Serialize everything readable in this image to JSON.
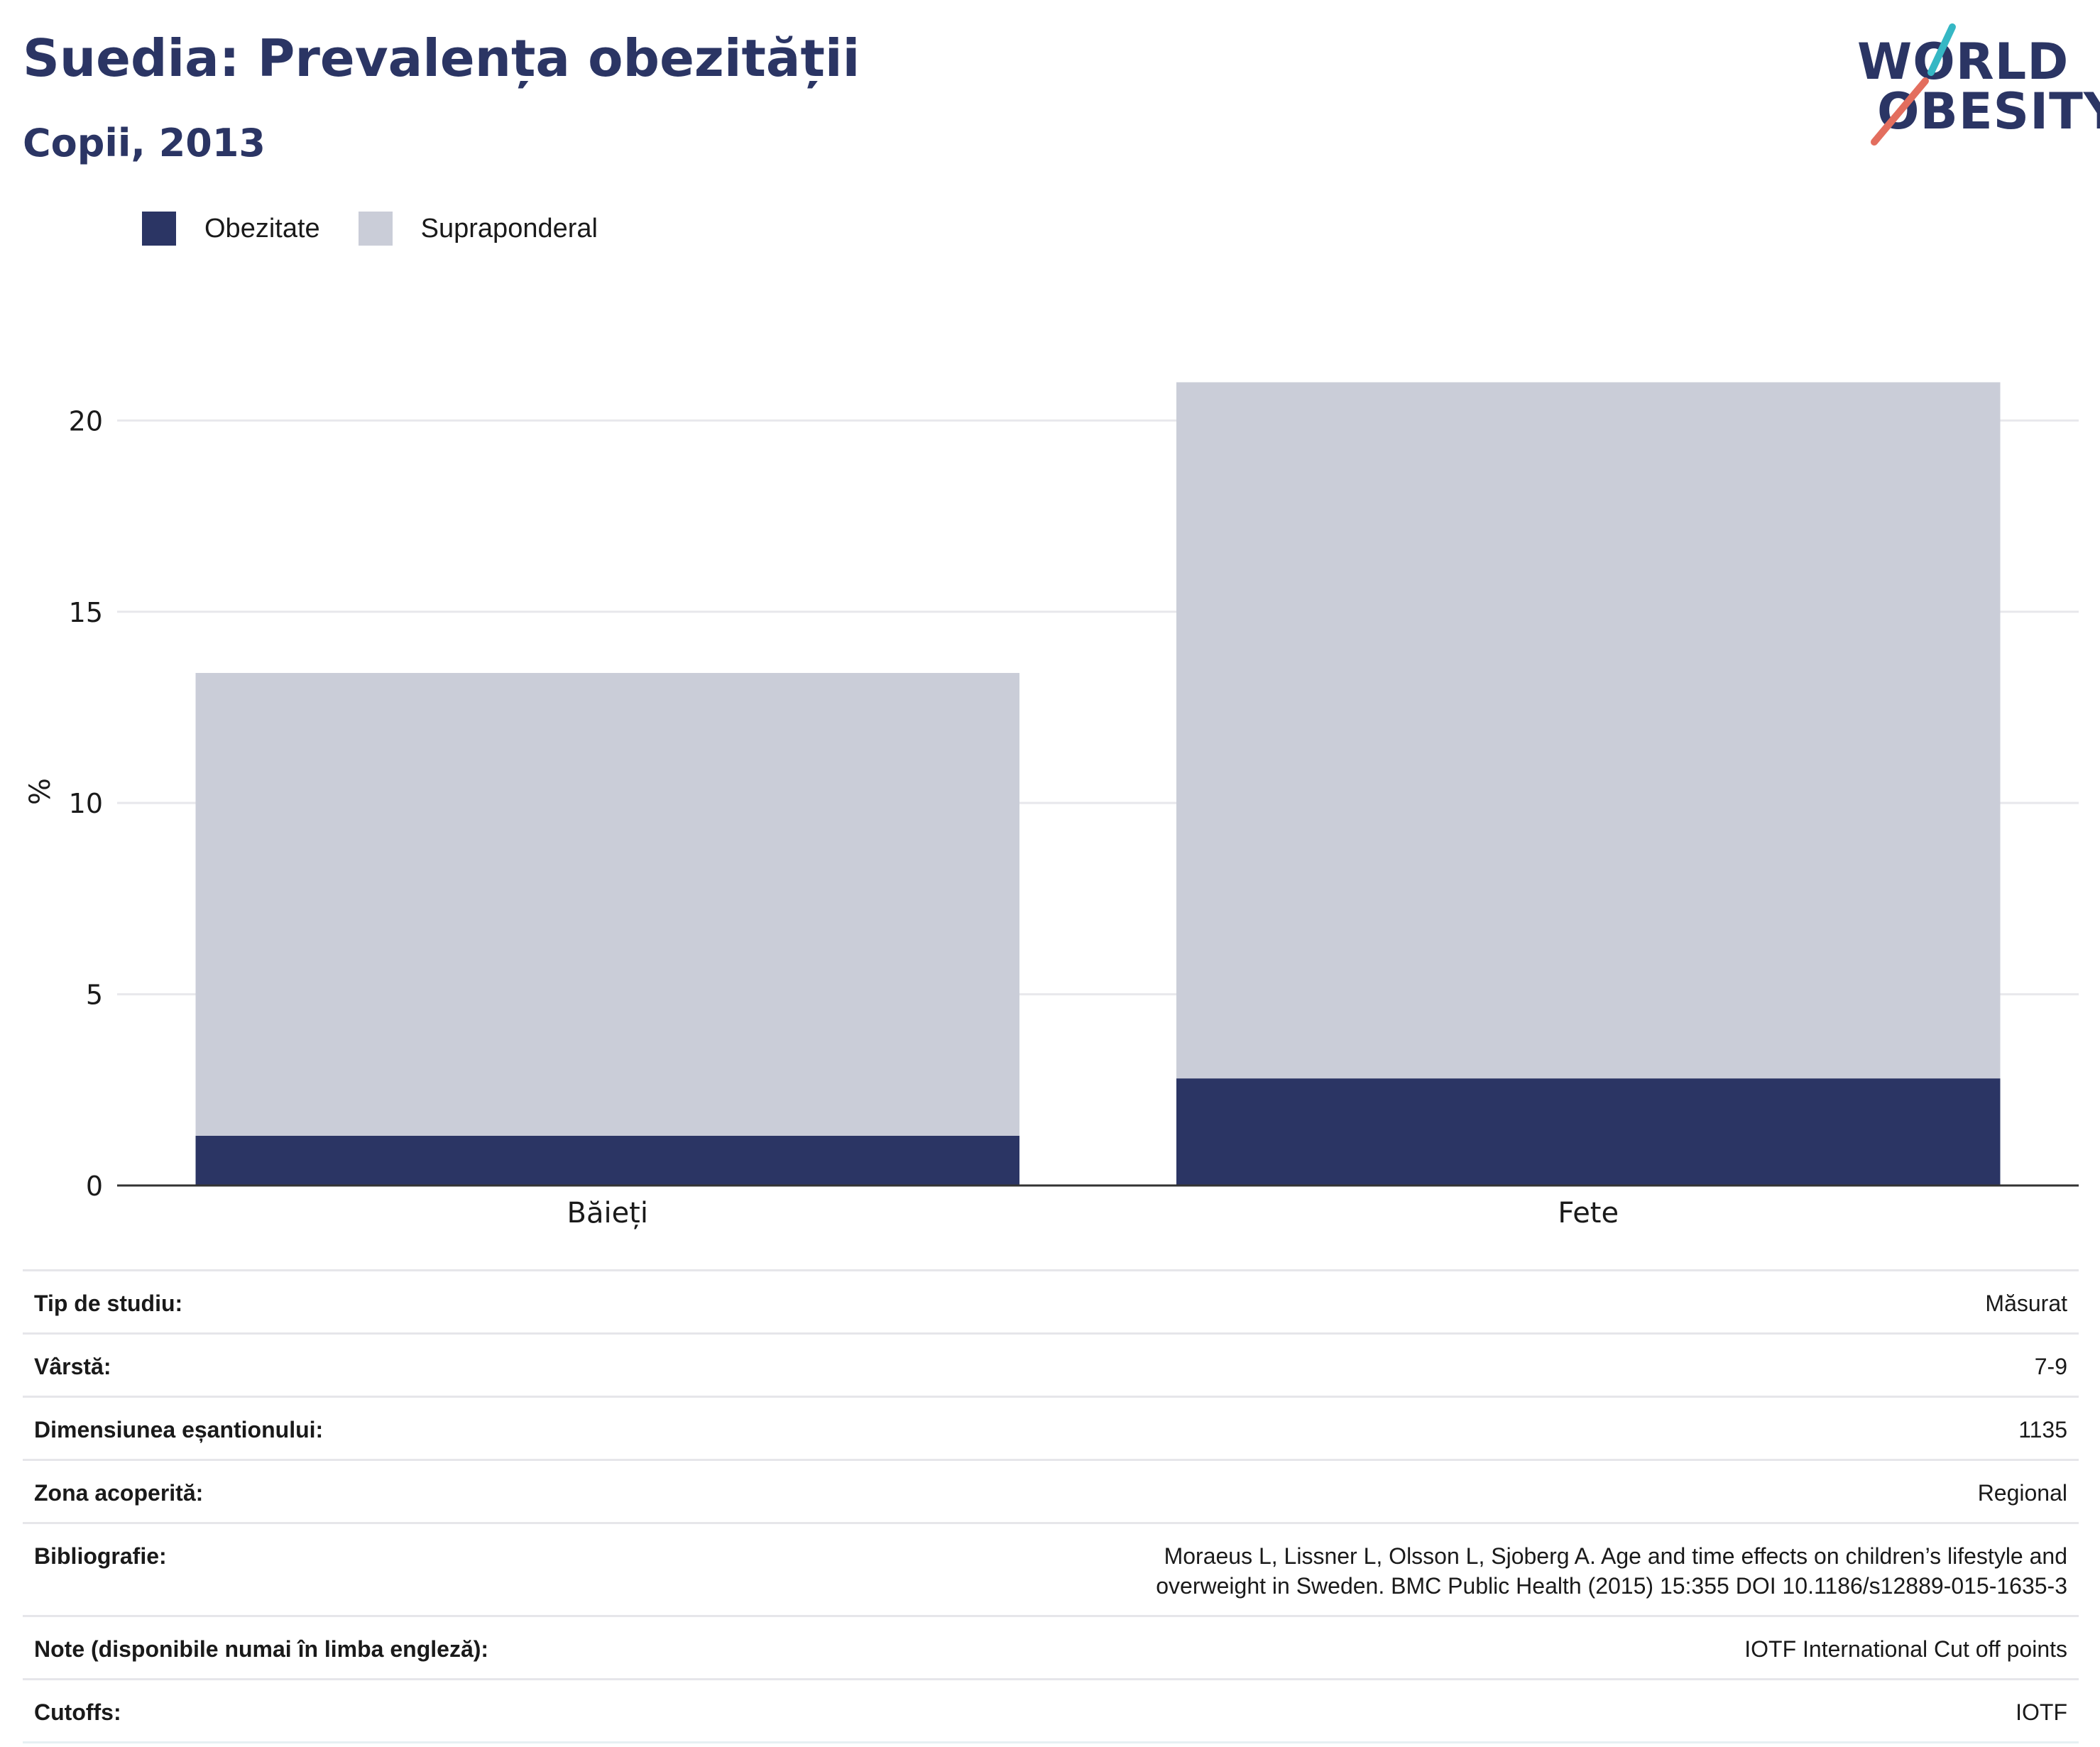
{
  "header": {
    "title": "Suedia: Prevalența obezității",
    "subtitle": "Copii, 2013",
    "logo": {
      "line1": "WORLD",
      "line2": "OBESITY"
    }
  },
  "colors": {
    "obezitate": "#2b3564",
    "supraponderal": "#cacdd8",
    "title": "#2b3564",
    "logo_teal": "#35b7c4",
    "logo_coral": "#e36e5e"
  },
  "chart_data": {
    "type": "bar",
    "stacked": true,
    "title": "",
    "xlabel": "",
    "ylabel": "%",
    "categories": [
      "Băieți",
      "Fete"
    ],
    "series": [
      {
        "name": "Obezitate",
        "values": [
          1.3,
          2.8
        ]
      },
      {
        "name": "Supraponderal",
        "values": [
          12.1,
          18.2
        ]
      }
    ],
    "ylim": [
      0,
      21.9
    ],
    "yticks": [
      0,
      5,
      10,
      15,
      20
    ],
    "grid": true,
    "legend": "top-left"
  },
  "info": [
    {
      "label": "Tip de studiu:",
      "value": "Măsurat"
    },
    {
      "label": "Vârstă:",
      "value": "7-9"
    },
    {
      "label": "Dimensiunea eșantionului:",
      "value": "1135"
    },
    {
      "label": "Zona acoperită:",
      "value": "Regional"
    },
    {
      "label": "Bibliografie:",
      "value": "Moraeus L, Lissner L, Olsson L, Sjoberg A. Age and time effects on children’s lifestyle and overweight in Sweden. BMC Public Health (2015) 15:355 DOI 10.1186/s12889-015-1635-3"
    },
    {
      "label": "Note (disponibile numai în limba engleză):",
      "value": "IOTF International Cut off points"
    },
    {
      "label": "Cutoffs:",
      "value": "IOTF"
    }
  ]
}
